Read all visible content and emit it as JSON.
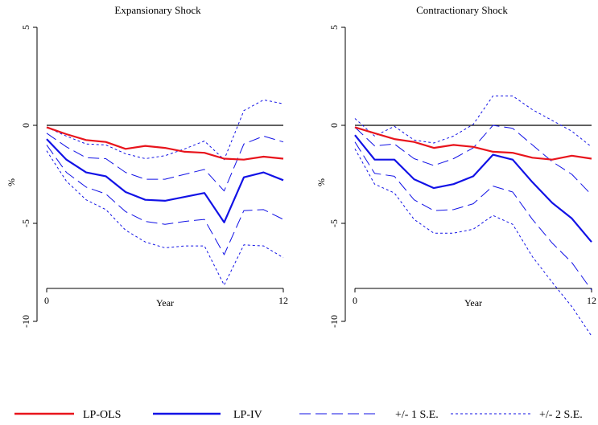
{
  "chart_data": [
    {
      "type": "line",
      "title": "Expansionary Shock",
      "xlabel": "Year",
      "ylabel": "%",
      "xlim": [
        0,
        12
      ],
      "ylim": [
        -11,
        5
      ],
      "xticks": [
        0,
        12
      ],
      "yticks": [
        5,
        0,
        -5,
        -10
      ],
      "x": [
        0,
        1,
        2,
        3,
        4,
        5,
        6,
        7,
        8,
        9,
        10,
        11,
        12
      ],
      "series": [
        {
          "name": "LP-OLS",
          "role": "ols",
          "values": [
            -0.1,
            -0.45,
            -0.75,
            -0.85,
            -1.2,
            -1.05,
            -1.15,
            -1.35,
            -1.4,
            -1.7,
            -1.75,
            -1.6,
            -1.7
          ]
        },
        {
          "name": "LP-IV",
          "role": "iv",
          "values": [
            -0.7,
            -1.75,
            -2.4,
            -2.6,
            -3.4,
            -3.8,
            -3.85,
            -3.65,
            -3.45,
            -4.95,
            -2.65,
            -2.4,
            -2.8
          ]
        },
        {
          "name": "+/- 1 S.E.",
          "role": "se1",
          "values": [
            -0.4,
            -1.1,
            -1.65,
            -1.7,
            -2.4,
            -2.75,
            -2.75,
            -2.5,
            -2.25,
            -3.35,
            -0.95,
            -0.55,
            -0.85
          ]
        },
        {
          "name": "+/- 1 S.E.",
          "role": "se1",
          "values": [
            -1.0,
            -2.4,
            -3.15,
            -3.5,
            -4.4,
            -4.9,
            -5.05,
            -4.9,
            -4.8,
            -6.6,
            -4.35,
            -4.3,
            -4.8
          ]
        },
        {
          "name": "+/- 2 S.E.",
          "role": "se2",
          "values": [
            -0.1,
            -0.55,
            -0.95,
            -1.0,
            -1.45,
            -1.7,
            -1.55,
            -1.2,
            -0.8,
            -1.75,
            0.75,
            1.3,
            1.1
          ]
        },
        {
          "name": "+/- 2 S.E.",
          "role": "se2",
          "values": [
            -1.3,
            -2.85,
            -3.8,
            -4.3,
            -5.35,
            -5.95,
            -6.25,
            -6.15,
            -6.15,
            -8.15,
            -6.1,
            -6.15,
            -6.75
          ]
        }
      ]
    },
    {
      "type": "line",
      "title": "Contractionary Shock",
      "xlabel": "Year",
      "ylabel": "%",
      "xlim": [
        0,
        12
      ],
      "ylim": [
        -11,
        5
      ],
      "xticks": [
        0,
        12
      ],
      "yticks": [
        5,
        0,
        -5,
        -10
      ],
      "x": [
        0,
        1,
        2,
        3,
        4,
        5,
        6,
        7,
        8,
        9,
        10,
        11,
        12
      ],
      "series": [
        {
          "name": "LP-OLS",
          "role": "ols",
          "values": [
            -0.1,
            -0.4,
            -0.7,
            -0.85,
            -1.15,
            -1.0,
            -1.1,
            -1.35,
            -1.4,
            -1.65,
            -1.75,
            -1.55,
            -1.7
          ]
        },
        {
          "name": "LP-IV",
          "role": "iv",
          "values": [
            -0.5,
            -1.75,
            -1.75,
            -2.75,
            -3.2,
            -3.0,
            -2.6,
            -1.5,
            -1.75,
            -2.9,
            -3.95,
            -4.75,
            -5.95
          ]
        },
        {
          "name": "+/- 1 S.E.",
          "role": "se1",
          "values": [
            -0.1,
            -1.05,
            -0.95,
            -1.7,
            -2.05,
            -1.7,
            -1.15,
            0.0,
            -0.15,
            -1.0,
            -1.85,
            -2.5,
            -3.55
          ]
        },
        {
          "name": "+/- 1 S.E.",
          "role": "se1",
          "values": [
            -0.85,
            -2.45,
            -2.6,
            -3.8,
            -4.35,
            -4.3,
            -4.0,
            -3.1,
            -3.4,
            -4.8,
            -6.0,
            -7.0,
            -8.4
          ]
        },
        {
          "name": "+/- 2 S.E.",
          "role": "se2",
          "values": [
            0.35,
            -0.55,
            -0.05,
            -0.75,
            -0.9,
            -0.55,
            0.05,
            1.5,
            1.5,
            0.8,
            0.25,
            -0.3,
            -1.1
          ]
        },
        {
          "name": "+/- 2 S.E.",
          "role": "se2",
          "values": [
            -1.2,
            -3.0,
            -3.45,
            -4.8,
            -5.5,
            -5.5,
            -5.3,
            -4.6,
            -5.05,
            -6.7,
            -8.0,
            -9.25,
            -10.75
          ]
        }
      ]
    }
  ],
  "legend": {
    "placement": "bottom",
    "items": [
      {
        "label": "LP-OLS",
        "role": "ols"
      },
      {
        "label": "LP-IV",
        "role": "iv"
      },
      {
        "label": "+/- 1 S.E.",
        "role": "se1"
      },
      {
        "label": "+/- 2 S.E.",
        "role": "se2"
      }
    ]
  },
  "styles": {
    "ols": {
      "color": "#e8141c",
      "dash": ""
    },
    "iv": {
      "color": "#1212e6",
      "dash": ""
    },
    "se1": {
      "color": "#1212e6",
      "dash": "14 6"
    },
    "se2": {
      "color": "#1212e6",
      "dash": "3 3"
    },
    "zero_line": "#000000"
  }
}
